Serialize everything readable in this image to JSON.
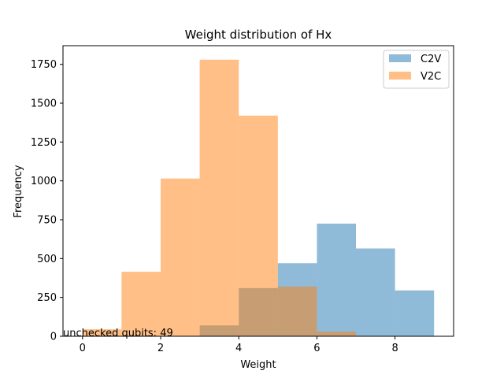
{
  "chart_data": {
    "type": "bar",
    "title": "Weight distribution of Hx",
    "xlabel": "Weight",
    "ylabel": "Frequency",
    "xlim": [
      -0.5,
      9.5
    ],
    "ylim": [
      0,
      1870
    ],
    "x_ticks": [
      0,
      2,
      4,
      6,
      8
    ],
    "y_ticks": [
      0,
      250,
      500,
      750,
      1000,
      1250,
      1500,
      1750
    ],
    "grid": false,
    "legend_position": "top-right",
    "bin_edges": [
      0,
      1,
      2,
      3,
      4,
      5,
      6,
      7,
      8,
      9
    ],
    "series": [
      {
        "name": "C2V",
        "color": "#1f77b4",
        "alpha": 0.5,
        "values": [
          0,
          0,
          0,
          70,
          310,
          470,
          725,
          565,
          295
        ]
      },
      {
        "name": "V2C",
        "color": "#ff7f0e",
        "alpha": 0.5,
        "values": [
          45,
          415,
          1015,
          1780,
          1420,
          320,
          30,
          0,
          0
        ]
      }
    ],
    "annotation": "unchecked qubits: 49"
  }
}
